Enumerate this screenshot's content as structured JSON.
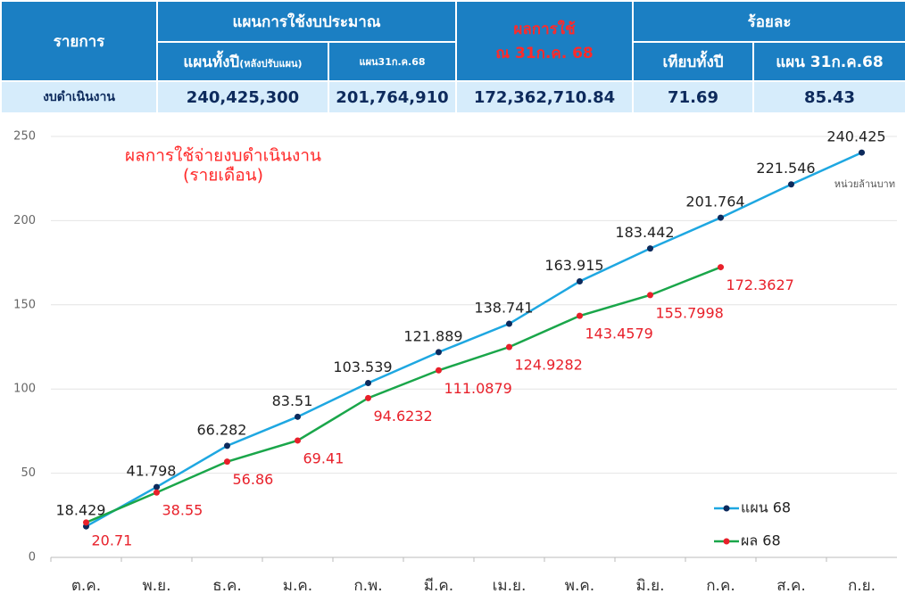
{
  "table": {
    "header": {
      "item": "รายการ",
      "plan_group": "แผนการใช้งบประมาณ",
      "result": [
        "ผลการใช้",
        "ณ 31ก.ค. 68"
      ],
      "percent_group": "ร้อยละ",
      "plan_full": "แผนทั้งปี",
      "plan_full_note": "(หลังปรับแผน)",
      "plan_jul": "แผน31ก.ค.68",
      "pct_full": "เทียบทั้งปี",
      "pct_jul": "แผน 31ก.ค.68"
    },
    "rows": [
      [
        "งบดำเนินงาน",
        "240,425,300",
        "201,764,910",
        "172,362,710.84",
        "71.69",
        "85.43"
      ]
    ]
  },
  "chart_data": {
    "type": "line",
    "title": "ผลการใช้จ่ายงบดำเนินงาน",
    "subtitle": "(รายเดือน)",
    "annotation": "หน่วยล้านบาท",
    "categories": [
      "ต.ค.",
      "พ.ย.",
      "ธ.ค.",
      "ม.ค.",
      "ก.พ.",
      "มี.ค.",
      "เม.ย.",
      "พ.ค.",
      "มิ.ย.",
      "ก.ค.",
      "ส.ค.",
      "ก.ย."
    ],
    "series": [
      {
        "name": "แผน 68",
        "color": "#1ea7e1",
        "marker_color": "#0d2a5c",
        "label_color": "#222222",
        "values": [
          18.429,
          41.798,
          66.282,
          83.51,
          103.539,
          121.889,
          138.741,
          163.915,
          183.442,
          201.764,
          221.546,
          240.425
        ]
      },
      {
        "name": "ผล 68",
        "color": "#1aa64a",
        "marker_color": "#e8202a",
        "label_color": "#e8202a",
        "values": [
          20.71,
          38.55,
          56.86,
          69.41,
          94.6232,
          111.0879,
          124.9282,
          143.4579,
          155.7998,
          172.3627,
          null,
          null
        ]
      }
    ],
    "ylim": [
      0,
      250
    ],
    "yticks": [
      0,
      50,
      100,
      150,
      200,
      250
    ],
    "grid": true,
    "legend": "lower right"
  }
}
